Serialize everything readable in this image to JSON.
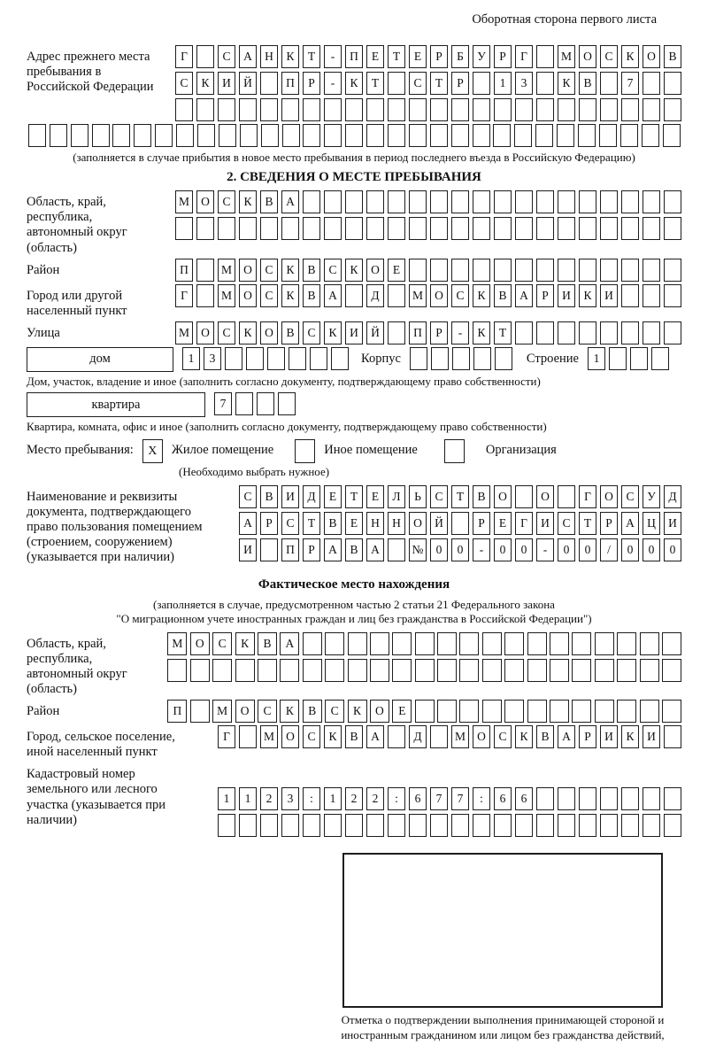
{
  "colors": {
    "form_border": "#1d1d1d"
  },
  "page": {
    "header_note": "Оборотная сторона первого листа"
  },
  "prev_address": {
    "label": "Адрес прежнего места пребывания в Российской Федерации",
    "rows": [
      {
        "cells": "Г САНКТ-ПЕТЕРБУРГ МОСКОВ",
        "len": 24
      },
      {
        "cells": "СКИЙ ПР-КТ СТР 13 КВ 7",
        "len": 24
      },
      {
        "cells": "",
        "len": 24
      }
    ],
    "full_row": {
      "cells": "",
      "len": 31
    },
    "note": "(заполняется в случае прибытия в новое место пребывания в период последнего въезда в Российскую Федерацию)"
  },
  "section2": {
    "title": "2. СВЕДЕНИЯ О МЕСТЕ ПРЕБЫВАНИЯ",
    "region": {
      "label": "Область, край, республика, автономный округ (область)",
      "rows": [
        {
          "cells": "МОСКВА",
          "len": 24
        },
        {
          "cells": "",
          "len": 24
        }
      ]
    },
    "district": {
      "label": "Район",
      "row": {
        "cells": "П МОСКВСКОЕ",
        "len": 24
      }
    },
    "city": {
      "label": "Город или другой населенный пункт",
      "row": {
        "cells": "Г МОСКВА Д МОСКВАРИКИ",
        "len": 24
      }
    },
    "street": {
      "label": "Улица",
      "row": {
        "cells": "МОСКОВСКИЙ ПР-КТ",
        "len": 24
      }
    },
    "house": {
      "box_label": "дом",
      "row": {
        "cells": "13",
        "len": 8
      },
      "korpus_label": "Корпус",
      "korpus_row": {
        "cells": "",
        "len": 5
      },
      "stroenie_label": "Строение",
      "stroenie_row": {
        "cells": "1",
        "len": 4
      },
      "note": "Дом, участок, владение и иное (заполнить согласно документу, подтверждающему право собственности)"
    },
    "apartment": {
      "box_label": "квартира",
      "row": {
        "cells": "7",
        "len": 4
      },
      "note": "Квартира, комната, офис и иное (заполнить согласно документу, подтверждающему право собственности)"
    },
    "stay_type": {
      "label": "Место пребывания:",
      "options": [
        {
          "mark": "X",
          "label": "Жилое помещение"
        },
        {
          "mark": "",
          "label": "Иное помещение"
        },
        {
          "mark": "",
          "label": "Организация"
        }
      ],
      "note": "(Необходимо выбрать нужное)"
    },
    "document": {
      "label": "Наименование и реквизиты документа, подтверждающего право пользования помещением (строением, сооружением) (указывается при наличии)",
      "rows": [
        {
          "cells": "СВИДЕТЕЛЬСТВО О ГОСУД",
          "len": 21
        },
        {
          "cells": "АРСТВЕННОЙ РЕГИСТРАЦИ",
          "len": 21
        },
        {
          "cells": "И ПРАВА №00-00-00/000",
          "len": 21
        }
      ]
    }
  },
  "actual_location": {
    "title": "Фактическое место нахождения",
    "note1": "(заполняется в случае, предусмотренном частью 2 статьи 21 Федерального закона",
    "note2": "\"О миграционном учете иностранных граждан и лиц без гражданства в Российской Федерации\")",
    "region": {
      "label": "Область, край, республика, автономный округ (область)",
      "rows": [
        {
          "cells": "МОСКВА",
          "len": 23
        },
        {
          "cells": "",
          "len": 23
        }
      ]
    },
    "district": {
      "label": "Район",
      "row": {
        "cells": "П МОСКВСКОЕ",
        "len": 23
      }
    },
    "city": {
      "label": "Город, сельское поселение, иной населенный пункт",
      "row": {
        "cells": "Г МОСКВА Д МОСКВАРИКИ",
        "len": 22
      }
    },
    "cadastral": {
      "label": "Кадастровый номер земельного или лесного участка (указывается при наличии)",
      "rows": [
        {
          "cells": "1123:122:677:66",
          "len": 22
        },
        {
          "cells": "",
          "len": 22
        }
      ]
    }
  },
  "stamp": {
    "note": "Отметка о подтверждении выполнения принимающей стороной и иностранным гражданином или лицом без гражданства действий, необходимых для его постановки на учет по месту пребывания"
  }
}
